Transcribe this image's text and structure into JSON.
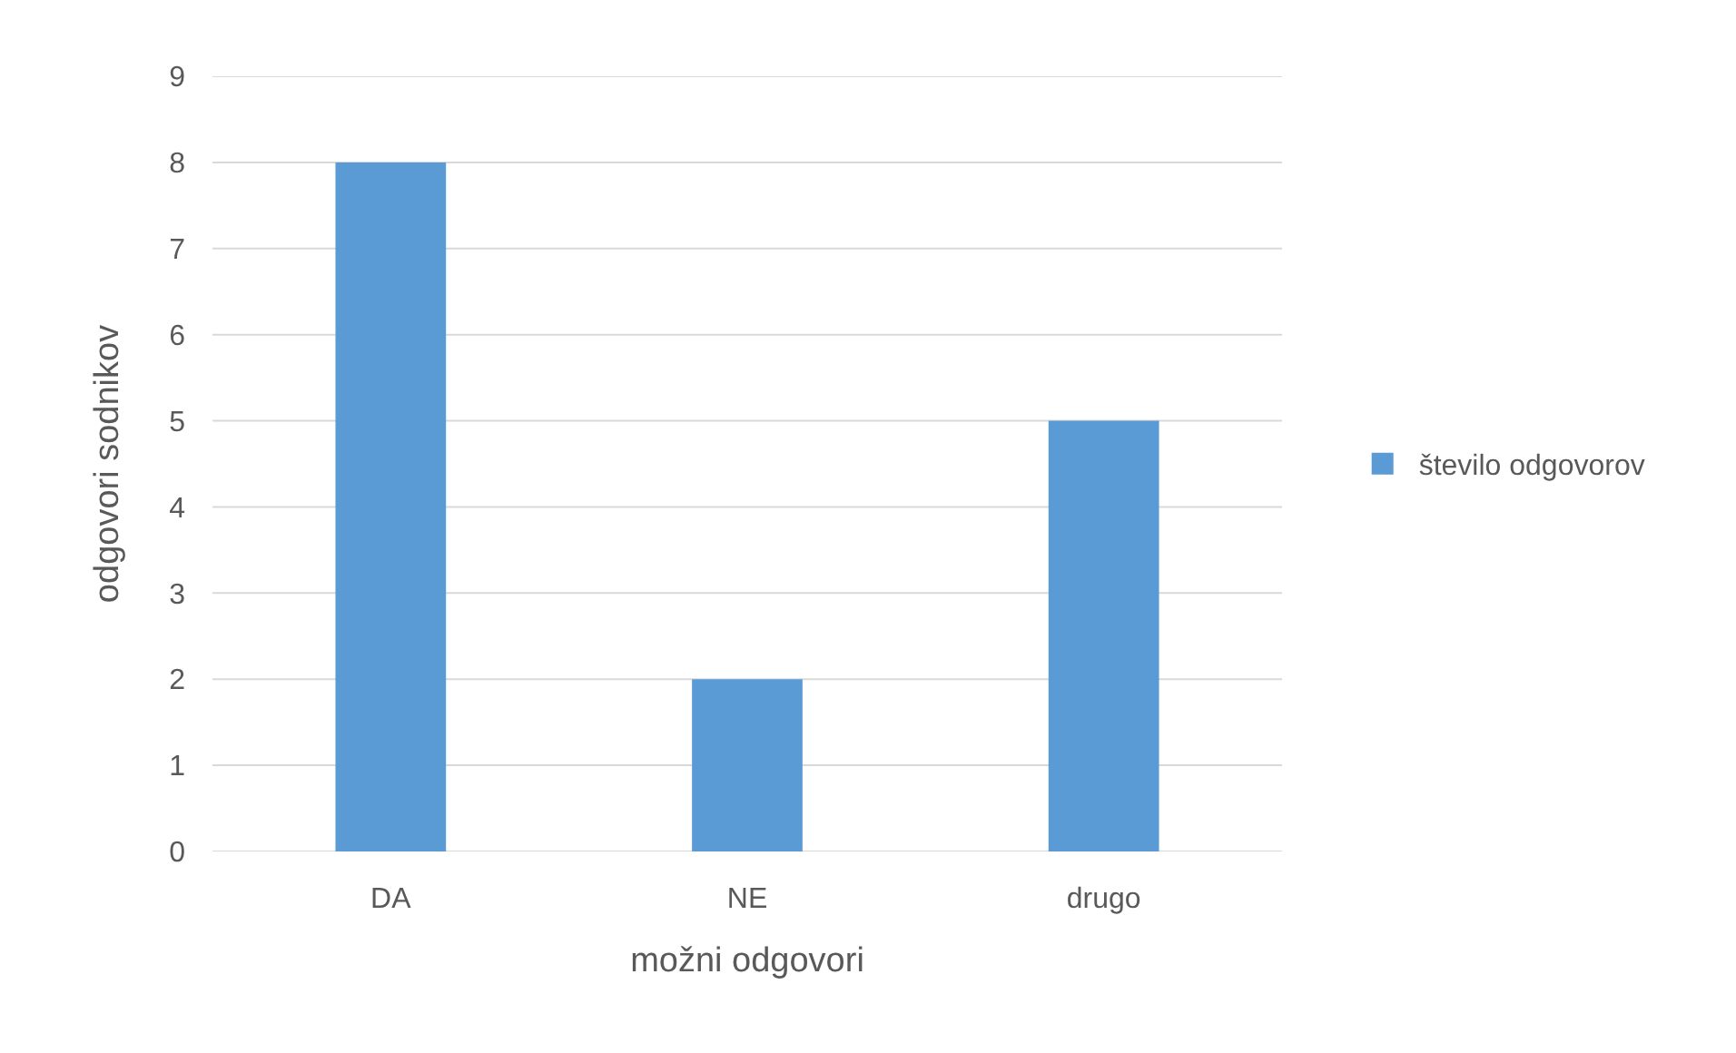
{
  "chart_data": {
    "type": "bar",
    "xlabel": "možni odgovori",
    "ylabel": "odgovori sodnikov",
    "categories": [
      "DA",
      "NE",
      "drugo"
    ],
    "series": [
      {
        "name": "število odgovorov",
        "color": "#5b9bd5",
        "values": [
          8,
          2,
          5
        ]
      }
    ],
    "ylim": [
      0,
      9
    ],
    "yticks": [
      0,
      1,
      2,
      3,
      4,
      5,
      6,
      7,
      8,
      9
    ],
    "grid": "y",
    "legend": "right"
  }
}
